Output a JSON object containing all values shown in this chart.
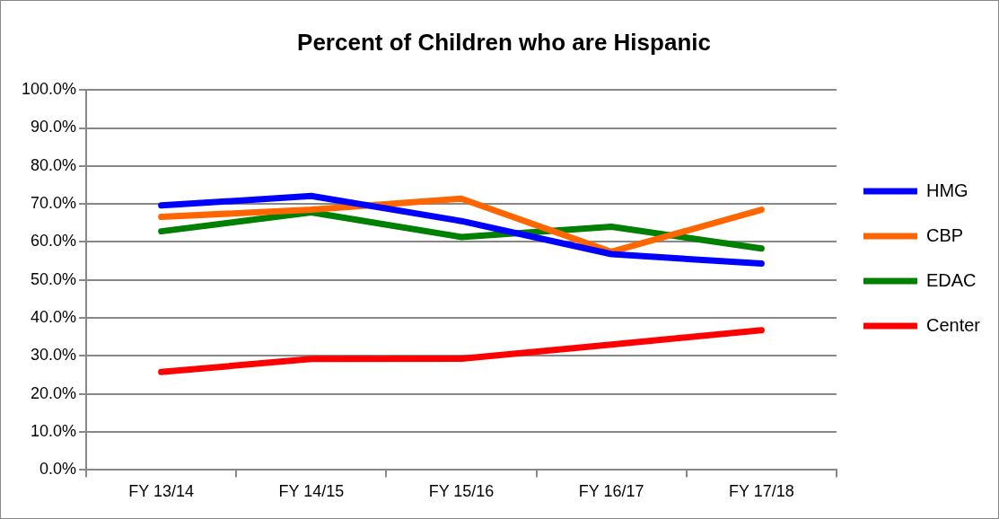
{
  "chart_data": {
    "type": "line",
    "title": "Percent of Children who are Hispanic",
    "categories": [
      "FY 13/14",
      "FY 14/15",
      "FY 15/16",
      "FY 16/17",
      "FY 17/18"
    ],
    "series": [
      {
        "name": "HMG",
        "color": "#0000ff",
        "values": [
          69.6,
          72.1,
          65.5,
          56.8,
          54.3
        ]
      },
      {
        "name": "CBP",
        "color": "#ff6600",
        "values": [
          66.6,
          68.5,
          71.4,
          57.4,
          68.5
        ]
      },
      {
        "name": "EDAC",
        "color": "#008000",
        "values": [
          62.8,
          67.8,
          61.3,
          64.0,
          58.3
        ]
      },
      {
        "name": "Center",
        "color": "#ff0000",
        "values": [
          25.8,
          29.2,
          29.3,
          33.0,
          36.8
        ]
      }
    ],
    "ylim": [
      0,
      100
    ],
    "yticks": [
      {
        "value": 0,
        "label": "0.0%"
      },
      {
        "value": 10,
        "label": "10.0%"
      },
      {
        "value": 20,
        "label": "20.0%"
      },
      {
        "value": 30,
        "label": "30.0%"
      },
      {
        "value": 40,
        "label": "40.0%"
      },
      {
        "value": 50,
        "label": "50.0%"
      },
      {
        "value": 60,
        "label": "60.0%"
      },
      {
        "value": 70,
        "label": "70.0%"
      },
      {
        "value": 80,
        "label": "80.0%"
      },
      {
        "value": 90,
        "label": "90.0%"
      },
      {
        "value": 100,
        "label": "100.0%"
      }
    ],
    "grid": "y",
    "legend": "right",
    "marker": "none",
    "line_style": "solid"
  }
}
